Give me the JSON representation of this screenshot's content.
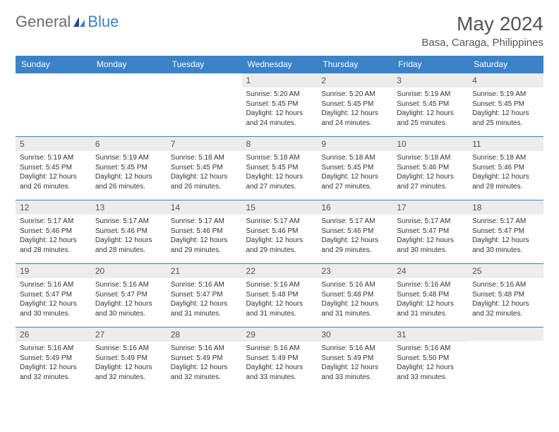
{
  "logo": {
    "text1": "General",
    "text2": "Blue"
  },
  "header": {
    "month_title": "May 2024",
    "location": "Basa, Caraga, Philippines"
  },
  "styling": {
    "header_bg": "#3b82c7",
    "header_fg": "#ffffff",
    "daynum_bg": "#ececec",
    "daynum_fg": "#555555",
    "border_color": "#3b82c7",
    "info_fontsize": 10,
    "weekday_fontsize": 12,
    "title_fontsize": 28,
    "logo_gray": "#6b6b6b",
    "logo_blue": "#3b82c7"
  },
  "weekdays": [
    "Sunday",
    "Monday",
    "Tuesday",
    "Wednesday",
    "Thursday",
    "Friday",
    "Saturday"
  ],
  "weeks": [
    [
      {
        "day": "",
        "sunrise": "",
        "sunset": "",
        "daylight": ""
      },
      {
        "day": "",
        "sunrise": "",
        "sunset": "",
        "daylight": ""
      },
      {
        "day": "",
        "sunrise": "",
        "sunset": "",
        "daylight": ""
      },
      {
        "day": "1",
        "sunrise": "Sunrise: 5:20 AM",
        "sunset": "Sunset: 5:45 PM",
        "daylight": "Daylight: 12 hours and 24 minutes."
      },
      {
        "day": "2",
        "sunrise": "Sunrise: 5:20 AM",
        "sunset": "Sunset: 5:45 PM",
        "daylight": "Daylight: 12 hours and 24 minutes."
      },
      {
        "day": "3",
        "sunrise": "Sunrise: 5:19 AM",
        "sunset": "Sunset: 5:45 PM",
        "daylight": "Daylight: 12 hours and 25 minutes."
      },
      {
        "day": "4",
        "sunrise": "Sunrise: 5:19 AM",
        "sunset": "Sunset: 5:45 PM",
        "daylight": "Daylight: 12 hours and 25 minutes."
      }
    ],
    [
      {
        "day": "5",
        "sunrise": "Sunrise: 5:19 AM",
        "sunset": "Sunset: 5:45 PM",
        "daylight": "Daylight: 12 hours and 26 minutes."
      },
      {
        "day": "6",
        "sunrise": "Sunrise: 5:19 AM",
        "sunset": "Sunset: 5:45 PM",
        "daylight": "Daylight: 12 hours and 26 minutes."
      },
      {
        "day": "7",
        "sunrise": "Sunrise: 5:18 AM",
        "sunset": "Sunset: 5:45 PM",
        "daylight": "Daylight: 12 hours and 26 minutes."
      },
      {
        "day": "8",
        "sunrise": "Sunrise: 5:18 AM",
        "sunset": "Sunset: 5:45 PM",
        "daylight": "Daylight: 12 hours and 27 minutes."
      },
      {
        "day": "9",
        "sunrise": "Sunrise: 5:18 AM",
        "sunset": "Sunset: 5:45 PM",
        "daylight": "Daylight: 12 hours and 27 minutes."
      },
      {
        "day": "10",
        "sunrise": "Sunrise: 5:18 AM",
        "sunset": "Sunset: 5:46 PM",
        "daylight": "Daylight: 12 hours and 27 minutes."
      },
      {
        "day": "11",
        "sunrise": "Sunrise: 5:18 AM",
        "sunset": "Sunset: 5:46 PM",
        "daylight": "Daylight: 12 hours and 28 minutes."
      }
    ],
    [
      {
        "day": "12",
        "sunrise": "Sunrise: 5:17 AM",
        "sunset": "Sunset: 5:46 PM",
        "daylight": "Daylight: 12 hours and 28 minutes."
      },
      {
        "day": "13",
        "sunrise": "Sunrise: 5:17 AM",
        "sunset": "Sunset: 5:46 PM",
        "daylight": "Daylight: 12 hours and 28 minutes."
      },
      {
        "day": "14",
        "sunrise": "Sunrise: 5:17 AM",
        "sunset": "Sunset: 5:46 PM",
        "daylight": "Daylight: 12 hours and 29 minutes."
      },
      {
        "day": "15",
        "sunrise": "Sunrise: 5:17 AM",
        "sunset": "Sunset: 5:46 PM",
        "daylight": "Daylight: 12 hours and 29 minutes."
      },
      {
        "day": "16",
        "sunrise": "Sunrise: 5:17 AM",
        "sunset": "Sunset: 5:46 PM",
        "daylight": "Daylight: 12 hours and 29 minutes."
      },
      {
        "day": "17",
        "sunrise": "Sunrise: 5:17 AM",
        "sunset": "Sunset: 5:47 PM",
        "daylight": "Daylight: 12 hours and 30 minutes."
      },
      {
        "day": "18",
        "sunrise": "Sunrise: 5:17 AM",
        "sunset": "Sunset: 5:47 PM",
        "daylight": "Daylight: 12 hours and 30 minutes."
      }
    ],
    [
      {
        "day": "19",
        "sunrise": "Sunrise: 5:16 AM",
        "sunset": "Sunset: 5:47 PM",
        "daylight": "Daylight: 12 hours and 30 minutes."
      },
      {
        "day": "20",
        "sunrise": "Sunrise: 5:16 AM",
        "sunset": "Sunset: 5:47 PM",
        "daylight": "Daylight: 12 hours and 30 minutes."
      },
      {
        "day": "21",
        "sunrise": "Sunrise: 5:16 AM",
        "sunset": "Sunset: 5:47 PM",
        "daylight": "Daylight: 12 hours and 31 minutes."
      },
      {
        "day": "22",
        "sunrise": "Sunrise: 5:16 AM",
        "sunset": "Sunset: 5:48 PM",
        "daylight": "Daylight: 12 hours and 31 minutes."
      },
      {
        "day": "23",
        "sunrise": "Sunrise: 5:16 AM",
        "sunset": "Sunset: 5:48 PM",
        "daylight": "Daylight: 12 hours and 31 minutes."
      },
      {
        "day": "24",
        "sunrise": "Sunrise: 5:16 AM",
        "sunset": "Sunset: 5:48 PM",
        "daylight": "Daylight: 12 hours and 31 minutes."
      },
      {
        "day": "25",
        "sunrise": "Sunrise: 5:16 AM",
        "sunset": "Sunset: 5:48 PM",
        "daylight": "Daylight: 12 hours and 32 minutes."
      }
    ],
    [
      {
        "day": "26",
        "sunrise": "Sunrise: 5:16 AM",
        "sunset": "Sunset: 5:49 PM",
        "daylight": "Daylight: 12 hours and 32 minutes."
      },
      {
        "day": "27",
        "sunrise": "Sunrise: 5:16 AM",
        "sunset": "Sunset: 5:49 PM",
        "daylight": "Daylight: 12 hours and 32 minutes."
      },
      {
        "day": "28",
        "sunrise": "Sunrise: 5:16 AM",
        "sunset": "Sunset: 5:49 PM",
        "daylight": "Daylight: 12 hours and 32 minutes."
      },
      {
        "day": "29",
        "sunrise": "Sunrise: 5:16 AM",
        "sunset": "Sunset: 5:49 PM",
        "daylight": "Daylight: 12 hours and 33 minutes."
      },
      {
        "day": "30",
        "sunrise": "Sunrise: 5:16 AM",
        "sunset": "Sunset: 5:49 PM",
        "daylight": "Daylight: 12 hours and 33 minutes."
      },
      {
        "day": "31",
        "sunrise": "Sunrise: 5:16 AM",
        "sunset": "Sunset: 5:50 PM",
        "daylight": "Daylight: 12 hours and 33 minutes."
      },
      {
        "day": "",
        "sunrise": "",
        "sunset": "",
        "daylight": ""
      }
    ]
  ]
}
